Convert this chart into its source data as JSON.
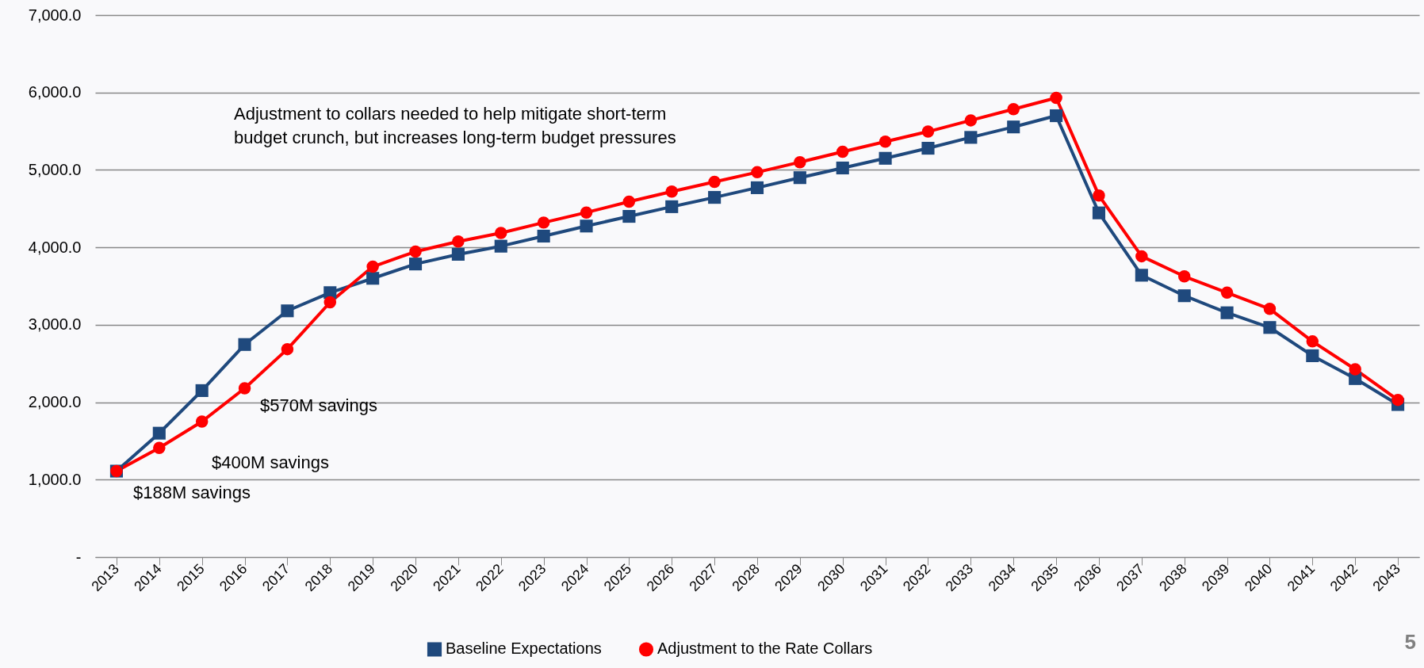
{
  "chart_data": {
    "type": "line",
    "categories": [
      "2013",
      "2014",
      "2015",
      "2016",
      "2017",
      "2018",
      "2019",
      "2020",
      "2021",
      "2022",
      "2023",
      "2024",
      "2025",
      "2026",
      "2027",
      "2028",
      "2029",
      "2030",
      "2031",
      "2032",
      "2033",
      "2034",
      "2035",
      "2036",
      "2037",
      "2038",
      "2039",
      "2040",
      "2041",
      "2042",
      "2043"
    ],
    "series": [
      {
        "name": "Baseline Expectations",
        "color": "#1f497d",
        "marker": "square",
        "values": [
          1110,
          1600,
          2150,
          2745,
          3180,
          3415,
          3600,
          3785,
          3910,
          4015,
          4145,
          4275,
          4400,
          4525,
          4645,
          4770,
          4900,
          5025,
          5150,
          5280,
          5420,
          5555,
          5700,
          4445,
          3640,
          3375,
          3155,
          2965,
          2600,
          2305,
          1970
        ]
      },
      {
        "name": "Adjustment to the Rate Collars",
        "color": "#ff0000",
        "marker": "circle",
        "values": [
          1110,
          1410,
          1750,
          2180,
          2685,
          3290,
          3750,
          3945,
          4075,
          4185,
          4320,
          4450,
          4590,
          4720,
          4845,
          4970,
          5100,
          5235,
          5365,
          5495,
          5640,
          5785,
          5930,
          4670,
          3885,
          3625,
          3415,
          3205,
          2785,
          2425,
          2030
        ]
      }
    ],
    "ylim": [
      0,
      7000
    ],
    "yticks": [
      {
        "value": 0,
        "label": "-"
      },
      {
        "value": 1000,
        "label": "1,000.0"
      },
      {
        "value": 2000,
        "label": "2,000.0"
      },
      {
        "value": 3000,
        "label": "3,000.0"
      },
      {
        "value": 4000,
        "label": "4,000.0"
      },
      {
        "value": 5000,
        "label": "5,000.0"
      },
      {
        "value": 6000,
        "label": "6,000.0"
      },
      {
        "value": 7000,
        "label": "7,000.0"
      }
    ],
    "grid": "y",
    "legend": "bottom",
    "annotations": [
      "Adjustment to collars needed to help mitigate  short-term\nbudget crunch, but increases long-term budget pressures",
      "$188M savings",
      "$400M savings",
      "$570M savings",
      "5"
    ]
  }
}
